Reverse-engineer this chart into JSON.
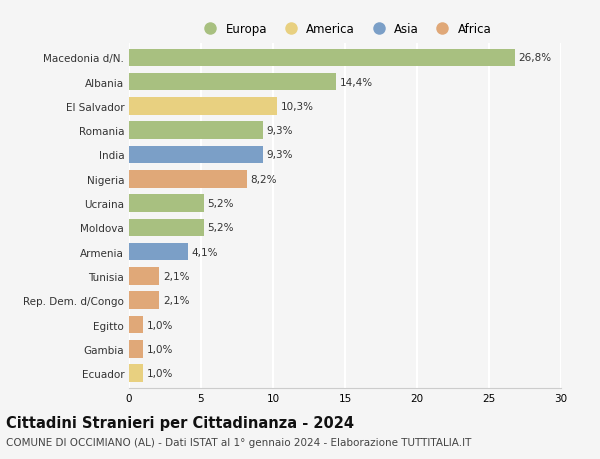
{
  "categories": [
    "Macedonia d/N.",
    "Albania",
    "El Salvador",
    "Romania",
    "India",
    "Nigeria",
    "Ucraina",
    "Moldova",
    "Armenia",
    "Tunisia",
    "Rep. Dem. d/Congo",
    "Egitto",
    "Gambia",
    "Ecuador"
  ],
  "values": [
    26.8,
    14.4,
    10.3,
    9.3,
    9.3,
    8.2,
    5.2,
    5.2,
    4.1,
    2.1,
    2.1,
    1.0,
    1.0,
    1.0
  ],
  "labels": [
    "26,8%",
    "14,4%",
    "10,3%",
    "9,3%",
    "9,3%",
    "8,2%",
    "5,2%",
    "5,2%",
    "4,1%",
    "2,1%",
    "2,1%",
    "1,0%",
    "1,0%",
    "1,0%"
  ],
  "continent": [
    "Europa",
    "Europa",
    "America",
    "Europa",
    "Asia",
    "Africa",
    "Europa",
    "Europa",
    "Asia",
    "Africa",
    "Africa",
    "Africa",
    "Africa",
    "America"
  ],
  "colors": {
    "Europa": "#a8c080",
    "America": "#e8d080",
    "Asia": "#7b9fc7",
    "Africa": "#e0a878"
  },
  "legend_order": [
    "Europa",
    "America",
    "Asia",
    "Africa"
  ],
  "legend_colors": {
    "Europa": "#a8c080",
    "America": "#e8d080",
    "Asia": "#7b9fc7",
    "Africa": "#e0a878"
  },
  "xlim": [
    0,
    30
  ],
  "xticks": [
    0,
    5,
    10,
    15,
    20,
    25,
    30
  ],
  "title": "Cittadini Stranieri per Cittadinanza - 2024",
  "subtitle": "COMUNE DI OCCIMIANO (AL) - Dati ISTAT al 1° gennaio 2024 - Elaborazione TUTTITALIA.IT",
  "background_color": "#f5f5f5",
  "grid_color": "#ffffff",
  "bar_height": 0.72,
  "title_fontsize": 10.5,
  "subtitle_fontsize": 7.5,
  "label_fontsize": 7.5,
  "tick_fontsize": 7.5,
  "legend_fontsize": 8.5
}
